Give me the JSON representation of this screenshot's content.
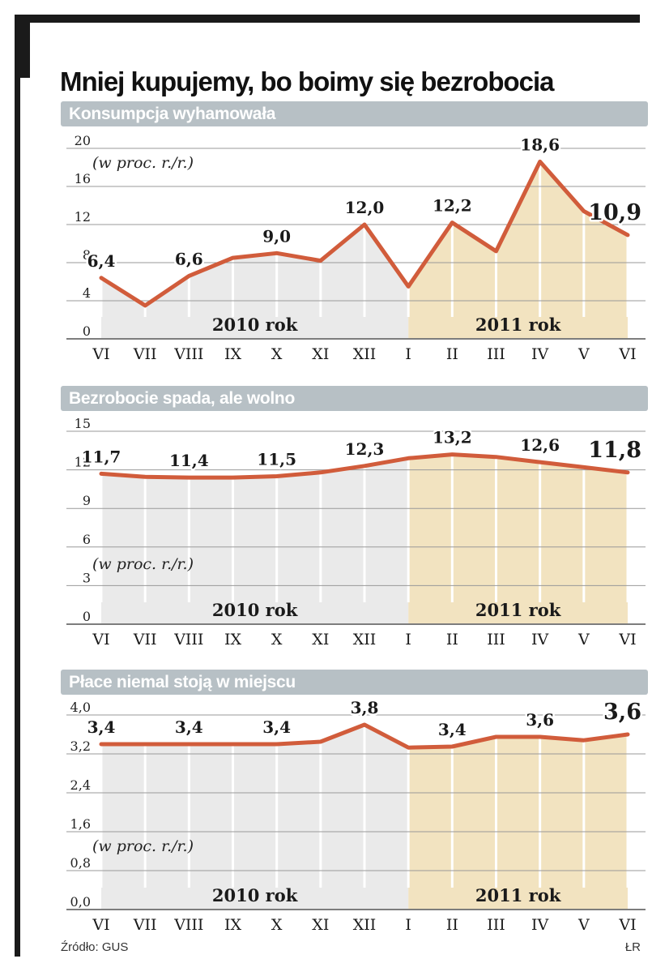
{
  "page": {
    "title": "Mniej kupujemy, bo boimy się bezrobocia",
    "source": "Źródło: GUS",
    "credit": "ŁR"
  },
  "colors": {
    "line": "#d15c3b",
    "accent_label": "#cf4a2a",
    "fill_2010": "#eaeaea",
    "fill_2011": "#f2e3c0",
    "header_bg": "#b7c0c5",
    "grid": "#999999",
    "baseline": "#7d7d7d",
    "tick_white": "#ffffff"
  },
  "chart_data": [
    {
      "type": "area",
      "title": "Konsumpcja wyhamowała",
      "unit_note": "(w proc. r./r.)",
      "categories": [
        "VI",
        "VII",
        "VIII",
        "IX",
        "X",
        "XI",
        "XII",
        "I",
        "II",
        "III",
        "IV",
        "V",
        "VI"
      ],
      "values": [
        6.4,
        3.5,
        6.6,
        8.5,
        9.0,
        8.2,
        12.0,
        5.5,
        12.2,
        9.2,
        18.6,
        13.4,
        10.9
      ],
      "point_labels": [
        {
          "index": 0,
          "text": "6,4"
        },
        {
          "index": 2,
          "text": "6,6"
        },
        {
          "index": 4,
          "text": "9,0"
        },
        {
          "index": 6,
          "text": "12,0"
        },
        {
          "index": 8,
          "text": "12,2"
        },
        {
          "index": 10,
          "text": "18,6"
        },
        {
          "index": 12,
          "text": "10,9",
          "accent": true
        }
      ],
      "ylim": [
        0,
        20
      ],
      "yticks": [
        {
          "value": 0,
          "label": "0"
        },
        {
          "value": 4,
          "label": "4"
        },
        {
          "value": 8,
          "label": "8"
        },
        {
          "value": 12,
          "label": "12"
        },
        {
          "value": 16,
          "label": "16"
        },
        {
          "value": 20,
          "label": "20"
        }
      ],
      "regions": [
        {
          "label": "2010 rok",
          "from": 0,
          "to": 7
        },
        {
          "label": "2011 rok",
          "from": 7,
          "to": 12
        }
      ]
    },
    {
      "type": "area",
      "title": "Bezrobocie spada, ale wolno",
      "unit_note": "(w proc. r./r.)",
      "categories": [
        "VI",
        "VII",
        "VIII",
        "IX",
        "X",
        "XI",
        "XII",
        "I",
        "II",
        "III",
        "IV",
        "V",
        "VI"
      ],
      "values": [
        11.7,
        11.45,
        11.4,
        11.4,
        11.5,
        11.8,
        12.3,
        12.9,
        13.2,
        13.0,
        12.6,
        12.2,
        11.8
      ],
      "point_labels": [
        {
          "index": 0,
          "text": "11,7"
        },
        {
          "index": 2,
          "text": "11,4"
        },
        {
          "index": 4,
          "text": "11,5"
        },
        {
          "index": 6,
          "text": "12,3"
        },
        {
          "index": 8,
          "text": "13,2"
        },
        {
          "index": 10,
          "text": "12,6"
        },
        {
          "index": 12,
          "text": "11,8",
          "accent": true
        }
      ],
      "ylim": [
        0,
        15
      ],
      "yticks": [
        {
          "value": 0,
          "label": "0"
        },
        {
          "value": 3,
          "label": "3"
        },
        {
          "value": 6,
          "label": "6"
        },
        {
          "value": 9,
          "label": "9"
        },
        {
          "value": 12,
          "label": "12"
        },
        {
          "value": 15,
          "label": "15"
        }
      ],
      "regions": [
        {
          "label": "2010 rok",
          "from": 0,
          "to": 7
        },
        {
          "label": "2011 rok",
          "from": 7,
          "to": 12
        }
      ]
    },
    {
      "type": "area",
      "title": "Płace niemal stoją w miejscu",
      "unit_note": "(w proc. r./r.)",
      "categories": [
        "VI",
        "VII",
        "VIII",
        "IX",
        "X",
        "XI",
        "XII",
        "I",
        "II",
        "III",
        "IV",
        "V",
        "VI"
      ],
      "values": [
        3.4,
        3.4,
        3.4,
        3.4,
        3.4,
        3.45,
        3.8,
        3.33,
        3.35,
        3.55,
        3.55,
        3.48,
        3.6
      ],
      "point_labels": [
        {
          "index": 0,
          "text": "3,4"
        },
        {
          "index": 2,
          "text": "3,4"
        },
        {
          "index": 4,
          "text": "3,4"
        },
        {
          "index": 6,
          "text": "3,8"
        },
        {
          "index": 8,
          "text": "3,4"
        },
        {
          "index": 10,
          "text": "3,6"
        },
        {
          "index": 12,
          "text": "3,6",
          "accent": true
        }
      ],
      "ylim": [
        0,
        4
      ],
      "yticks": [
        {
          "value": 0,
          "label": "0,0"
        },
        {
          "value": 0.8,
          "label": "0,8"
        },
        {
          "value": 1.6,
          "label": "1,6"
        },
        {
          "value": 2.4,
          "label": "2,4"
        },
        {
          "value": 3.2,
          "label": "3,2"
        },
        {
          "value": 4,
          "label": "4,0"
        }
      ],
      "regions": [
        {
          "label": "2010 rok",
          "from": 0,
          "to": 7
        },
        {
          "label": "2011 rok",
          "from": 7,
          "to": 12
        }
      ]
    }
  ]
}
